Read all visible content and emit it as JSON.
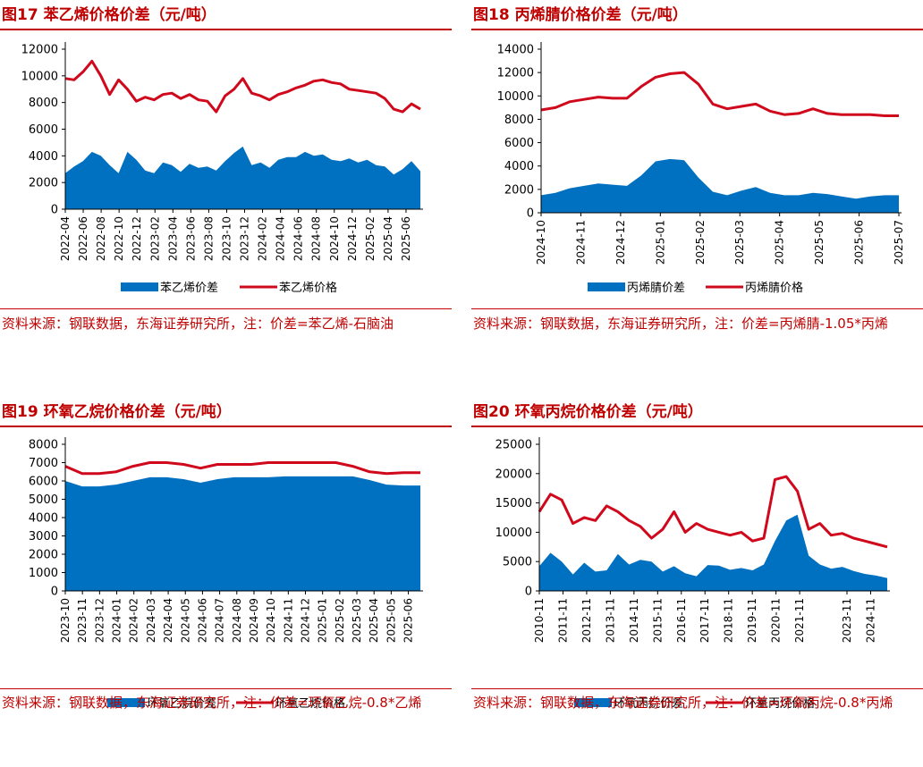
{
  "colors": {
    "accent": "#c00000",
    "area": "#0070c0",
    "line": "#d0081c",
    "axis": "#000000"
  },
  "charts": [
    {
      "title": "图17  苯乙烯价格价差（元/吨）",
      "source": "资料来源：钢联数据，东海证券研究所，注：价差=苯乙烯-石脑油",
      "legend": [
        "苯乙烯价差",
        "苯乙烯价格"
      ]
    },
    {
      "title": "图18  丙烯腈价格价差（元/吨）",
      "source": "资料来源：钢联数据，东海证券研究所，注：价差=丙烯腈-1.05*丙烯",
      "legend": [
        "丙烯腈价差",
        "丙烯腈价格"
      ]
    },
    {
      "title": "图19  环氧乙烷价格价差（元/吨）",
      "source": "资料来源：钢联数据，东海证券研究所，注：价差=环氧乙烷-0.8*乙烯",
      "legend": [
        "环氧乙烷价差",
        "环氧乙烷价格"
      ]
    },
    {
      "title": "图20  环氧丙烷价格价差（元/吨）",
      "source": "资料来源：钢联数据，东海证券研究所，注：价差=环氧丙烷-0.8*丙烯",
      "legend": [
        "环氧丙烷价差",
        "环氧丙烷价格"
      ]
    }
  ],
  "chart_data": [
    {
      "type": "area+line",
      "title": "苯乙烯价格价差",
      "ylim": [
        0,
        12000
      ],
      "yticks": [
        0,
        2000,
        4000,
        6000,
        8000,
        10000,
        12000
      ],
      "xticks": [
        "2022-04",
        "2022-06",
        "2022-08",
        "2022-10",
        "2022-12",
        "2023-02",
        "2023-04",
        "2023-06",
        "2023-08",
        "2023-10",
        "2023-12",
        "2024-02",
        "2024-04",
        "2024-06",
        "2024-08",
        "2024-10",
        "2024-12",
        "2025-02",
        "2025-04",
        "2025-06"
      ],
      "x_end": 19.8,
      "series": [
        {
          "name": "苯乙烯价差",
          "kind": "area",
          "values": [
            2700,
            3200,
            3600,
            4300,
            4000,
            3300,
            2700,
            4300,
            3700,
            2900,
            2700,
            3500,
            3300,
            2800,
            3400,
            3100,
            3200,
            2900,
            3600,
            4200,
            4700,
            3300,
            3500,
            3100,
            3700,
            3900,
            3900,
            4300,
            4000,
            4100,
            3700,
            3600,
            3800,
            3500,
            3700,
            3300,
            3200,
            2600,
            3000,
            3600,
            2850
          ]
        },
        {
          "name": "苯乙烯价格",
          "kind": "line",
          "values": [
            9800,
            9700,
            10300,
            11100,
            10000,
            8600,
            9700,
            9000,
            8100,
            8400,
            8200,
            8600,
            8700,
            8300,
            8600,
            8200,
            8100,
            7300,
            8500,
            9000,
            9800,
            8700,
            8500,
            8200,
            8600,
            8800,
            9100,
            9300,
            9600,
            9700,
            9500,
            9400,
            9000,
            8900,
            8800,
            8700,
            8300,
            7500,
            7300,
            7900,
            7500
          ]
        }
      ]
    },
    {
      "type": "area+line",
      "title": "丙烯腈价格价差",
      "ylim": [
        0,
        14000
      ],
      "yticks": [
        0,
        2000,
        4000,
        6000,
        8000,
        10000,
        12000,
        14000
      ],
      "xticks": [
        "2024-10",
        "2024-11",
        "2024-12",
        "2025-01",
        "2025-02",
        "2025-03",
        "2025-04",
        "2025-05",
        "2025-06",
        "2025-07"
      ],
      "x_end": 9.0,
      "series": [
        {
          "name": "丙烯腈价差",
          "kind": "area",
          "values": [
            1500,
            1700,
            2100,
            2300,
            2500,
            2400,
            2300,
            3200,
            4400,
            4600,
            4500,
            3000,
            1800,
            1500,
            1900,
            2200,
            1700,
            1500,
            1500,
            1700,
            1600,
            1400,
            1200,
            1400,
            1500,
            1500
          ]
        },
        {
          "name": "丙烯腈价格",
          "kind": "line",
          "values": [
            8800,
            9000,
            9500,
            9700,
            9900,
            9800,
            9800,
            10800,
            11600,
            11900,
            12000,
            11000,
            9300,
            8900,
            9100,
            9300,
            8700,
            8400,
            8500,
            8900,
            8500,
            8400,
            8400,
            8400,
            8300,
            8300
          ]
        }
      ]
    },
    {
      "type": "area+line",
      "title": "环氧乙烷价格价差",
      "ylim": [
        0,
        8000
      ],
      "yticks": [
        0,
        1000,
        2000,
        3000,
        4000,
        5000,
        6000,
        7000,
        8000
      ],
      "xticks": [
        "2023-10",
        "2023-11",
        "2023-12",
        "2024-01",
        "2024-02",
        "2024-03",
        "2024-04",
        "2024-05",
        "2024-06",
        "2024-07",
        "2024-08",
        "2024-09",
        "2024-10",
        "2024-11",
        "2024-12",
        "2025-01",
        "2025-02",
        "2025-03",
        "2025-04",
        "2025-05",
        "2025-06"
      ],
      "x_end": 20.7,
      "series": [
        {
          "name": "环氧乙烷价差",
          "kind": "area",
          "values": [
            6000,
            5700,
            5700,
            5800,
            6000,
            6200,
            6200,
            6100,
            5900,
            6100,
            6200,
            6200,
            6200,
            6250,
            6250,
            6250,
            6250,
            6250,
            6050,
            5800,
            5750,
            5750
          ]
        },
        {
          "name": "环氧乙烷价格",
          "kind": "line",
          "values": [
            6800,
            6400,
            6400,
            6500,
            6800,
            7000,
            7000,
            6900,
            6700,
            6900,
            6900,
            6900,
            7000,
            7000,
            7000,
            7000,
            7000,
            6800,
            6500,
            6400,
            6450,
            6450
          ]
        }
      ]
    },
    {
      "type": "area+line",
      "title": "环氧丙烷价格价差",
      "ylim": [
        0,
        25000
      ],
      "yticks": [
        0,
        5000,
        10000,
        15000,
        20000,
        25000
      ],
      "xticks": [
        "2010-11",
        "2011-11",
        "2012-11",
        "2013-11",
        "2014-11",
        "2015-11",
        "2016-11",
        "2017-11",
        "2018-11",
        "2019-11",
        "2020-11",
        "2021-11",
        "2023-11",
        "2024-11"
      ],
      "xtick_pos": [
        0,
        1,
        2,
        3,
        4,
        5,
        6,
        7,
        8,
        9,
        10,
        11,
        13,
        14
      ],
      "x_end": 14.7,
      "series": [
        {
          "name": "环氧丙烷价差",
          "kind": "area",
          "values": [
            4200,
            6500,
            5000,
            2800,
            4800,
            3300,
            3500,
            6300,
            4500,
            5300,
            5000,
            3300,
            4200,
            3000,
            2500,
            4400,
            4300,
            3600,
            3900,
            3500,
            4500,
            8500,
            12000,
            13000,
            6000,
            4500,
            3800,
            4100,
            3400,
            2900,
            2600,
            2200
          ]
        },
        {
          "name": "环氧丙烷价格",
          "kind": "line",
          "values": [
            13500,
            16500,
            15500,
            11500,
            12500,
            12000,
            14500,
            13500,
            12000,
            11000,
            9000,
            10500,
            13500,
            10000,
            11500,
            10500,
            10000,
            9500,
            10000,
            8500,
            9000,
            19000,
            19500,
            17000,
            10500,
            11500,
            9500,
            9800,
            9000,
            8500,
            8000,
            7500
          ]
        }
      ]
    }
  ]
}
